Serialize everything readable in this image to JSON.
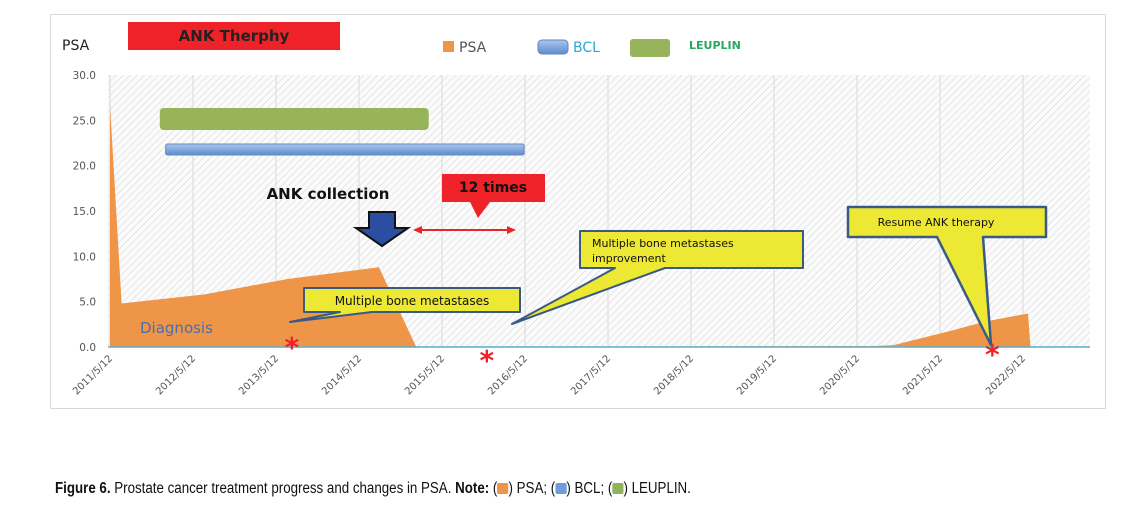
{
  "chart_data": {
    "type": "area",
    "title": "ANK Therphy",
    "ylabel": "PSA",
    "xlabel": "",
    "ylim": [
      0,
      30
    ],
    "yticks": [
      "0.0",
      "5.0",
      "10.0",
      "15.0",
      "20.0",
      "25.0",
      "30.0"
    ],
    "xticks": [
      "2011/5/12",
      "2012/5/12",
      "2013/5/12",
      "2014/5/12",
      "2015/5/12",
      "2016/5/12",
      "2017/5/12",
      "2018/5/12",
      "2019/5/12",
      "2020/5/12",
      "2021/5/12",
      "2022/5/12"
    ],
    "grid": true,
    "legend_position": "top",
    "legend": [
      {
        "label": "PSA",
        "color": "#ee9548"
      },
      {
        "label": "BCL",
        "color": "#6f9bd6"
      },
      {
        "label": "LEUPLIN",
        "color": "#97b45a"
      }
    ],
    "series": [
      {
        "name": "PSA",
        "type": "area",
        "color": "#ee9548",
        "x": [
          2011.36,
          2011.5,
          2012.5,
          2013.5,
          2014.6,
          2015.05,
          2020.5,
          2020.8,
          2021.5,
          2021.9,
          2022.42,
          2022.45
        ],
        "y": [
          26.7,
          4.8,
          5.8,
          7.5,
          8.8,
          0.0,
          0.1,
          0.2,
          1.8,
          2.8,
          3.7,
          0.0
        ]
      }
    ],
    "ranges": [
      {
        "name": "LEUPLIN",
        "start": 2011.96,
        "end": 2015.2,
        "color": "#97b45a"
      },
      {
        "name": "BCL",
        "start": 2012.03,
        "end": 2016.35,
        "color": "#6f9bd6"
      }
    ],
    "markers": [
      {
        "symbol": "*",
        "x": 2013.55
      },
      {
        "symbol": "*",
        "x": 2015.9
      },
      {
        "symbol": "*",
        "x": 2021.99
      }
    ],
    "annotations": {
      "ank_collection": "ANK collection",
      "twelve_times": "12 times",
      "diagnosis": "Diagnosis",
      "bone_mets": "Multiple bone metastases",
      "bone_mets_improve_1": "Multiple bone metastases",
      "bone_mets_improve_2": "improvement",
      "resume": "Resume ANK therapy"
    }
  },
  "caption": {
    "figure": "Figure 6.",
    "text": " Prostate cancer treatment progress and changes in PSA. ",
    "note": "Note:",
    "psa": ") PSA; (",
    "bcl": ") BCL; (",
    "leuplin": ") LEUPLIN.",
    "open": "("
  }
}
